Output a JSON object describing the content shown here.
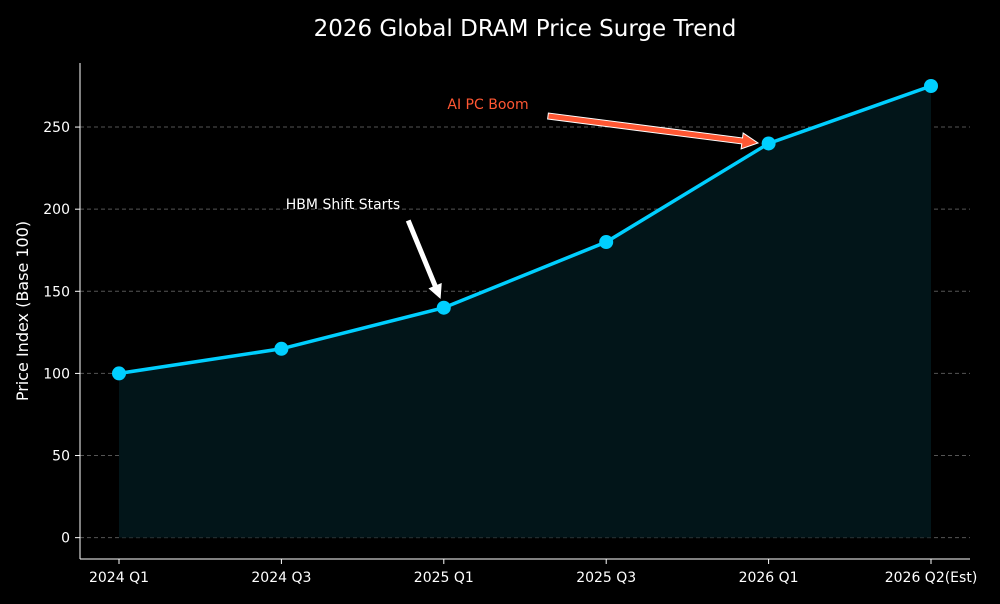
{
  "chart_data": {
    "type": "line",
    "title": "2026 Global DRAM Price Surge Trend",
    "xlabel": "",
    "ylabel": "Price Index (Base 100)",
    "categories": [
      "2024 Q1",
      "2024 Q3",
      "2025 Q1",
      "2025 Q3",
      "2026 Q1",
      "2026 Q2(Est)"
    ],
    "values": [
      100,
      115,
      140,
      180,
      240,
      275
    ],
    "ylim": [
      -13,
      289
    ],
    "yticks": [
      0,
      50,
      100,
      150,
      200,
      250
    ],
    "grid": "horizontal dashed",
    "area_fill": true,
    "annotations": [
      {
        "text": "HBM Shift Starts",
        "target": "2025 Q1",
        "color": "#ffffff"
      },
      {
        "text": "AI PC Boom",
        "target": "2026 Q1",
        "color": "#ff5733"
      }
    ],
    "colors": {
      "line": "#00cfff",
      "fill": "#021519",
      "background": "#000000",
      "grid": "#555555"
    }
  }
}
